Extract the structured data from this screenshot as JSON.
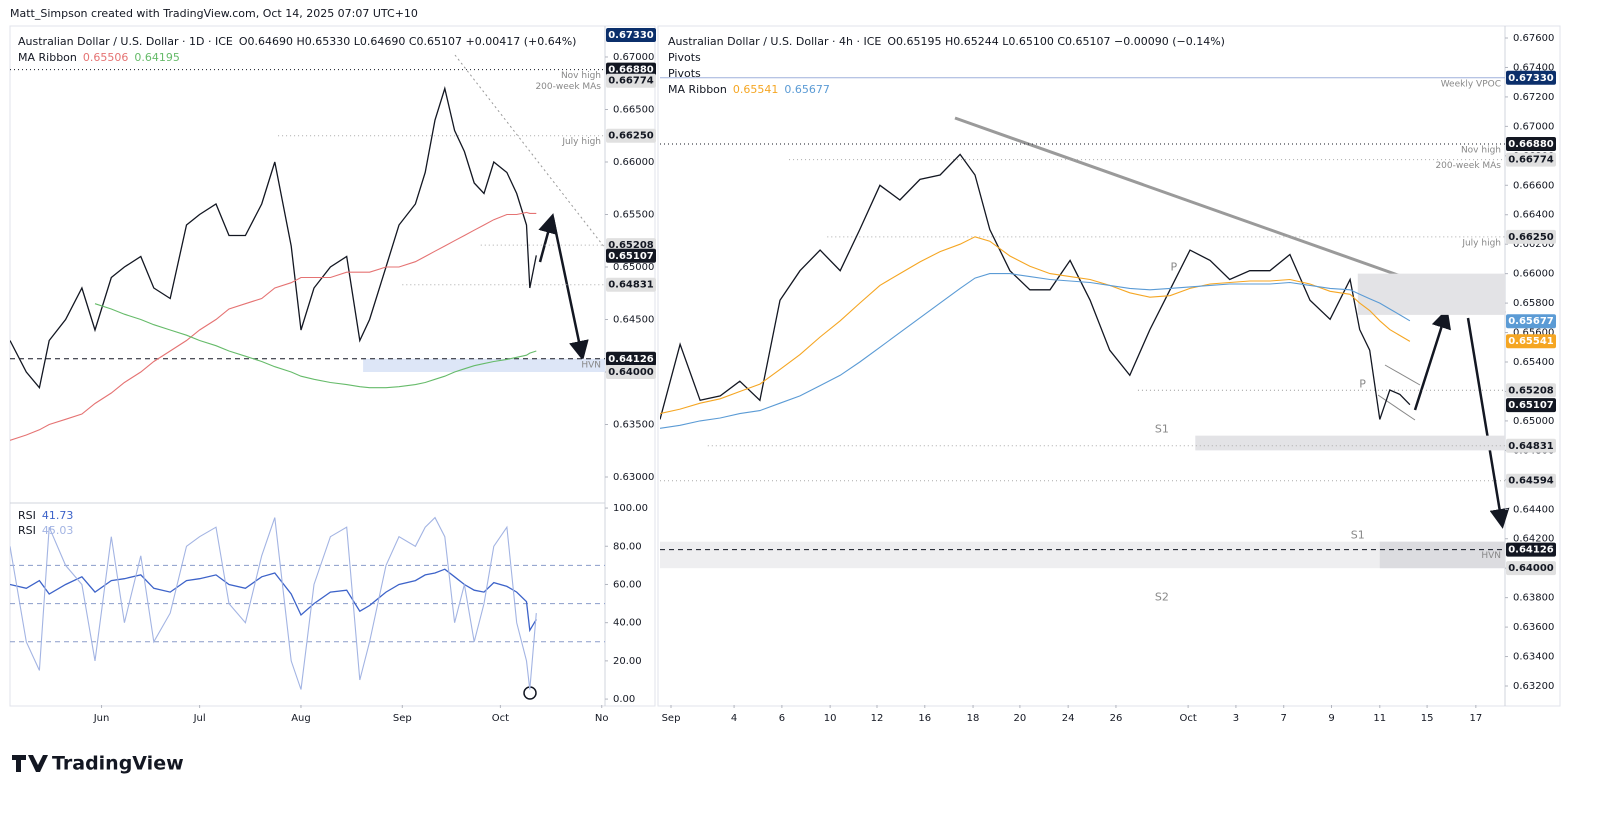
{
  "header": "Matt_Simpson created with TradingView.com, Oct 14, 2025 07:07 UTC+10",
  "footer": "TradingView",
  "chart_data": [
    {
      "type": "line",
      "title": "Australian Dollar / U.S. Dollar · 1D · ICE",
      "ohlc": "O0.64690 H0.65330 L0.64690 C0.65107 +0.00417 (+0.64%)",
      "ribbon": {
        "label": "MA Ribbon",
        "readings": [
          "0.65506",
          "0.64195"
        ]
      },
      "x": [
        0,
        5,
        9,
        12,
        17,
        22,
        26,
        31,
        35,
        40,
        44,
        49,
        54,
        58,
        63,
        67,
        72,
        77,
        81,
        86,
        89,
        93,
        98,
        103,
        107,
        110,
        115,
        119,
        124,
        127,
        130,
        133,
        136,
        139,
        142,
        145,
        148,
        152,
        155,
        158,
        159,
        161
      ],
      "xlim": [
        0,
        182
      ],
      "ylim": [
        0.62781,
        0.67276
      ],
      "yticks": [
        {
          "value": 0.63,
          "label": "0.63000"
        },
        {
          "value": 0.635,
          "label": "0.63500"
        },
        {
          "value": 0.64,
          "label": "0.64000"
        },
        {
          "value": 0.645,
          "label": "0.64500"
        },
        {
          "value": 0.65,
          "label": "0.65000"
        },
        {
          "value": 0.655,
          "label": "0.65500"
        },
        {
          "value": 0.66,
          "label": "0.66000"
        },
        {
          "value": 0.665,
          "label": "0.66500"
        },
        {
          "value": 0.67,
          "label": "0.67000"
        }
      ],
      "grid": false,
      "series": [
        {
          "color": "#131722",
          "values": [
            0.643,
            0.64,
            0.6385,
            0.643,
            0.645,
            0.648,
            0.644,
            0.649,
            0.65,
            0.651,
            0.648,
            0.647,
            0.654,
            0.655,
            0.656,
            0.653,
            0.653,
            0.656,
            0.66,
            0.652,
            0.644,
            0.648,
            0.65,
            0.651,
            0.643,
            0.645,
            0.65,
            0.654,
            0.656,
            0.659,
            0.664,
            0.667,
            0.663,
            0.661,
            0.658,
            0.657,
            0.66,
            0.659,
            0.657,
            0.654,
            0.648,
            0.6511
          ]
        },
        {
          "color": "#e57373",
          "values": [
            0.6335,
            0.634,
            0.6345,
            0.635,
            0.6355,
            0.636,
            0.637,
            0.638,
            0.639,
            0.64,
            0.641,
            0.642,
            0.643,
            0.644,
            0.645,
            0.646,
            0.6465,
            0.647,
            0.648,
            0.6485,
            0.649,
            0.649,
            0.649,
            0.6495,
            0.6495,
            0.6495,
            0.65,
            0.65,
            0.6505,
            0.651,
            0.6515,
            0.652,
            0.6525,
            0.653,
            0.6535,
            0.654,
            0.6545,
            0.655,
            0.655,
            0.6552,
            0.6551,
            0.6551
          ]
        },
        {
          "color": "#66bb6a",
          "values": [
            null,
            null,
            null,
            null,
            null,
            null,
            0.6465,
            0.646,
            0.6455,
            0.645,
            0.6445,
            0.644,
            0.6435,
            0.643,
            0.6425,
            0.642,
            0.6415,
            0.641,
            0.6405,
            0.64,
            0.6396,
            0.6393,
            0.639,
            0.6388,
            0.6386,
            0.6385,
            0.6385,
            0.6386,
            0.6388,
            0.639,
            0.6393,
            0.6396,
            0.64,
            0.6403,
            0.6406,
            0.6408,
            0.641,
            0.6412,
            0.6414,
            0.6416,
            0.6418,
            0.642
          ]
        }
      ],
      "zones": [
        {
          "y": [
            0.64,
            0.64126
          ],
          "x": [
            108,
            182
          ],
          "color": "#dde6f7"
        }
      ],
      "levels": [
        {
          "value": 0.6733,
          "label": "0.67330",
          "box": "#0b2f6b"
        },
        {
          "value": 0.6688,
          "label": "0.66880",
          "box": "#131722",
          "name": "Nov high",
          "style": "dotted",
          "x0": 0,
          "line": "#131722"
        },
        {
          "value": 0.66774,
          "label": "0.66774",
          "box": "#e0e0e0",
          "name": "200-week MAs"
        },
        {
          "value": 0.6625,
          "label": "0.66250",
          "box": "#e0e0e0",
          "name": "July high",
          "style": "dotted",
          "x0": 82,
          "line": "#aaa"
        },
        {
          "value": 0.65208,
          "label": "0.65208",
          "box": "#e0e0e0",
          "style": "dotted",
          "x0": 144,
          "line": "#aaa"
        },
        {
          "value": 0.65107,
          "label": "0.65107",
          "box": "#131722"
        },
        {
          "value": 0.64831,
          "label": "0.64831",
          "box": "#e0e0e0",
          "style": "dotted",
          "x0": 120,
          "line": "#aaa"
        },
        {
          "value": 0.64126,
          "label": "0.64126",
          "box": "#131722",
          "name": "HVN",
          "style": "dashed",
          "x0": 0,
          "line": "#131722"
        },
        {
          "value": 0.64,
          "label": "0.64000",
          "box": "#e0e0e0"
        }
      ]
    },
    {
      "type": "line",
      "x": [
        0,
        5,
        9,
        12,
        17,
        22,
        26,
        31,
        35,
        40,
        44,
        49,
        54,
        58,
        63,
        67,
        72,
        77,
        81,
        86,
        89,
        93,
        98,
        103,
        107,
        110,
        115,
        119,
        124,
        127,
        130,
        133,
        136,
        139,
        142,
        145,
        148,
        152,
        155,
        158,
        159,
        161
      ],
      "xlim": [
        0,
        182
      ],
      "xticks": [
        {
          "value": 28,
          "label": "Jun"
        },
        {
          "value": 58,
          "label": "Jul"
        },
        {
          "value": 89,
          "label": "Aug"
        },
        {
          "value": 120,
          "label": "Sep"
        },
        {
          "value": 150,
          "label": "Oct"
        },
        {
          "value": 181,
          "label": "No"
        }
      ],
      "ylim": [
        -3.1,
        101.6
      ],
      "yticks": [
        {
          "value": 0,
          "label": "0.00"
        },
        {
          "value": 20,
          "label": "20.00"
        },
        {
          "value": 40,
          "label": "40.00"
        },
        {
          "value": 60,
          "label": "60.00"
        },
        {
          "value": 80,
          "label": "80.00"
        },
        {
          "value": 100,
          "label": "100.00"
        }
      ],
      "grid": false,
      "levels": [
        {
          "value": 70,
          "style": "dashed",
          "line": "#8a9cc9"
        },
        {
          "value": 50,
          "style": "dashed",
          "line": "#8a9cc9"
        },
        {
          "value": 30,
          "style": "dashed",
          "line": "#8a9cc9"
        }
      ],
      "series": [
        {
          "name": "RSI",
          "reading": "41.73",
          "color": "#3d63c9",
          "values": [
            60,
            58,
            62,
            55,
            60,
            64,
            56,
            62,
            63,
            65,
            58,
            56,
            62,
            63,
            65,
            60,
            58,
            64,
            66,
            55,
            44,
            50,
            56,
            57,
            46,
            49,
            56,
            60,
            62,
            65,
            66,
            68,
            64,
            60,
            57,
            56,
            61,
            59,
            56,
            51,
            36,
            41.73
          ]
        },
        {
          "name": "RSI",
          "reading": "45.03",
          "color": "#a3b4e3",
          "values": [
            80,
            30,
            15,
            90,
            70,
            60,
            20,
            85,
            40,
            75,
            30,
            45,
            80,
            85,
            90,
            50,
            40,
            75,
            95,
            20,
            5,
            60,
            85,
            90,
            10,
            30,
            70,
            85,
            80,
            90,
            95,
            85,
            40,
            60,
            30,
            50,
            80,
            90,
            40,
            20,
            5,
            45.03
          ]
        }
      ]
    },
    {
      "type": "line",
      "title": "Australian Dollar / U.S. Dollar · 4h · ICE",
      "ohlc": "O0.65195 H0.65244 L0.65100 C0.65107 −0.00090 (−0.14%)",
      "pivot_labels": [
        "Pivots",
        "Pivots"
      ],
      "ribbon": {
        "label": "MA Ribbon",
        "readings": [
          "0.65541",
          "0.65677"
        ]
      },
      "x": [
        0,
        0.42,
        0.84,
        1.26,
        1.67,
        2.09,
        2.51,
        2.93,
        3.35,
        3.77,
        4.18,
        4.6,
        5.02,
        5.44,
        5.86,
        6.28,
        6.59,
        6.9,
        7.32,
        7.74,
        8.16,
        8.58,
        9,
        9.41,
        9.83,
        10.25,
        10.67,
        11.09,
        11.51,
        11.92,
        12.34,
        12.76,
        13.18,
        13.6,
        14.02,
        14.44,
        14.64,
        14.85,
        15.06,
        15.27,
        15.48,
        15.69
      ],
      "xlim": [
        0,
        17.68
      ],
      "xticks": [
        {
          "value": 0.23,
          "label": "Sep"
        },
        {
          "value": 1.55,
          "label": "4"
        },
        {
          "value": 2.55,
          "label": "6"
        },
        {
          "value": 3.56,
          "label": "10"
        },
        {
          "value": 4.54,
          "label": "12"
        },
        {
          "value": 5.54,
          "label": "16"
        },
        {
          "value": 6.55,
          "label": "18"
        },
        {
          "value": 7.53,
          "label": "20"
        },
        {
          "value": 8.54,
          "label": "24"
        },
        {
          "value": 9.54,
          "label": "26"
        },
        {
          "value": 11.05,
          "label": "Oct"
        },
        {
          "value": 12.05,
          "label": "3"
        },
        {
          "value": 13.05,
          "label": "7"
        },
        {
          "value": 14.05,
          "label": "9"
        },
        {
          "value": 15.06,
          "label": "11"
        },
        {
          "value": 16.05,
          "label": "15"
        },
        {
          "value": 17.07,
          "label": "17"
        }
      ],
      "ylim": [
        0.63071,
        0.67668
      ],
      "yticks": [
        {
          "value": 0.632,
          "label": "0.63200"
        },
        {
          "value": 0.634,
          "label": "0.63400"
        },
        {
          "value": 0.636,
          "label": "0.63600"
        },
        {
          "value": 0.638,
          "label": "0.63800"
        },
        {
          "value": 0.64,
          "label": "0.64000"
        },
        {
          "value": 0.642,
          "label": "0.64200"
        },
        {
          "value": 0.644,
          "label": "0.64400"
        },
        {
          "value": 0.646,
          "label": "0.64600"
        },
        {
          "value": 0.648,
          "label": "0.64800"
        },
        {
          "value": 0.65,
          "label": "0.65000"
        },
        {
          "value": 0.652,
          "label": "0.65200"
        },
        {
          "value": 0.654,
          "label": "0.65400"
        },
        {
          "value": 0.656,
          "label": "0.65600"
        },
        {
          "value": 0.658,
          "label": "0.65800"
        },
        {
          "value": 0.66,
          "label": "0.66000"
        },
        {
          "value": 0.662,
          "label": "0.66200"
        },
        {
          "value": 0.664,
          "label": "0.66400"
        },
        {
          "value": 0.666,
          "label": "0.66600"
        },
        {
          "value": 0.668,
          "label": "0.66800"
        },
        {
          "value": 0.67,
          "label": "0.67000"
        },
        {
          "value": 0.672,
          "label": "0.67200"
        },
        {
          "value": 0.674,
          "label": "0.67400"
        },
        {
          "value": 0.676,
          "label": "0.67600"
        }
      ],
      "grid": false,
      "series": [
        {
          "color": "#131722",
          "values": [
            0.6501,
            0.6552,
            0.6514,
            0.6517,
            0.6527,
            0.6514,
            0.6582,
            0.6602,
            0.6616,
            0.6602,
            0.663,
            0.666,
            0.665,
            0.6664,
            0.6667,
            0.6681,
            0.6667,
            0.663,
            0.6602,
            0.6589,
            0.6589,
            0.6609,
            0.6582,
            0.6548,
            0.6531,
            0.6562,
            0.6589,
            0.6616,
            0.6609,
            0.6596,
            0.6602,
            0.6602,
            0.6613,
            0.6582,
            0.6569,
            0.6596,
            0.6562,
            0.6548,
            0.6501,
            0.6521,
            0.6518,
            0.6511
          ]
        },
        {
          "color": "#f5a623",
          "values": [
            0.6505,
            0.6508,
            0.6512,
            0.6515,
            0.652,
            0.6525,
            0.6535,
            0.6545,
            0.6557,
            0.6568,
            0.658,
            0.6592,
            0.66,
            0.6608,
            0.6615,
            0.662,
            0.6625,
            0.6622,
            0.6612,
            0.6605,
            0.66,
            0.6598,
            0.6596,
            0.6592,
            0.6587,
            0.6584,
            0.6585,
            0.659,
            0.6593,
            0.6594,
            0.6595,
            0.6595,
            0.6596,
            0.6593,
            0.6588,
            0.6586,
            0.658,
            0.6575,
            0.6568,
            0.6562,
            0.6558,
            0.6554
          ]
        },
        {
          "color": "#5b9bd5",
          "values": [
            0.6495,
            0.6497,
            0.65,
            0.6502,
            0.6505,
            0.6507,
            0.6512,
            0.6517,
            0.6524,
            0.6531,
            0.654,
            0.655,
            0.656,
            0.657,
            0.658,
            0.659,
            0.6597,
            0.66,
            0.66,
            0.6598,
            0.6596,
            0.6595,
            0.6594,
            0.6592,
            0.659,
            0.6589,
            0.659,
            0.6591,
            0.6592,
            0.6593,
            0.6593,
            0.6593,
            0.6594,
            0.6592,
            0.659,
            0.6589,
            0.6586,
            0.6583,
            0.658,
            0.6576,
            0.6572,
            0.6568
          ]
        }
      ],
      "zones": [
        {
          "y": [
            0.648,
            0.649
          ],
          "x": [
            11.2,
            17.68
          ],
          "color": "#e3e3e6"
        },
        {
          "y": [
            0.6572,
            0.66
          ],
          "x": [
            14.6,
            17.68
          ],
          "color": "#e3e3e6"
        },
        {
          "y": [
            0.64,
            0.6418
          ],
          "x": [
            0,
            17.68
          ],
          "color": "#eeeef0"
        },
        {
          "y": [
            0.64,
            0.6418
          ],
          "x": [
            15.06,
            17.68
          ],
          "color": "#dcdce0"
        }
      ],
      "pivots": [
        {
          "label": "P",
          "value": 0.66,
          "x": 10.75
        },
        {
          "label": "P",
          "value": 0.65208,
          "x": 14.7
        },
        {
          "label": "S1",
          "value": 0.649,
          "x": 10.5
        },
        {
          "label": "S1",
          "value": 0.6418,
          "x": 14.6
        },
        {
          "label": "S2",
          "value": 0.6376,
          "x": 10.5
        }
      ],
      "levels": [
        {
          "value": 0.6733,
          "label": "0.67330",
          "box": "#0b2f6b",
          "name": "Weekly VPOC",
          "style": "solid",
          "x0": 0,
          "line": "#9fb0dc"
        },
        {
          "value": 0.6688,
          "label": "0.66880",
          "box": "#131722",
          "name": "Nov high",
          "style": "dotted",
          "x0": 0,
          "line": "#131722"
        },
        {
          "value": 0.66774,
          "label": "0.66774",
          "box": "#e0e0e0",
          "name": "200-week MAs",
          "style": "dotted",
          "x0": 2.7,
          "line": "#aaa"
        },
        {
          "value": 0.6625,
          "label": "0.66250",
          "box": "#e0e0e0",
          "name": "July high",
          "style": "dotted",
          "x0": 3.5,
          "line": "#aaa"
        },
        {
          "value": 0.65677,
          "label": "0.65677",
          "box": "#5b9bd5"
        },
        {
          "value": 0.65541,
          "label": "0.65541",
          "box": "#f5a623"
        },
        {
          "value": 0.65208,
          "label": "0.65208",
          "box": "#e0e0e0",
          "style": "dotted",
          "x0": 10,
          "line": "#999"
        },
        {
          "value": 0.65107,
          "label": "0.65107",
          "box": "#131722"
        },
        {
          "value": 0.64831,
          "label": "0.64831",
          "box": "#e0e0e0",
          "style": "dotted",
          "x0": 1,
          "line": "#aaa"
        },
        {
          "value": 0.64594,
          "label": "0.64594",
          "box": "#e0e0e0",
          "style": "dotted",
          "x0": 0,
          "line": "#aaa"
        },
        {
          "value": 0.64126,
          "label": "0.64126",
          "box": "#131722",
          "name": "HVN",
          "style": "dashed",
          "x0": 0,
          "line": "#131722"
        },
        {
          "value": 0.64,
          "label": "0.64000",
          "box": "#e0e0e0"
        }
      ]
    }
  ]
}
